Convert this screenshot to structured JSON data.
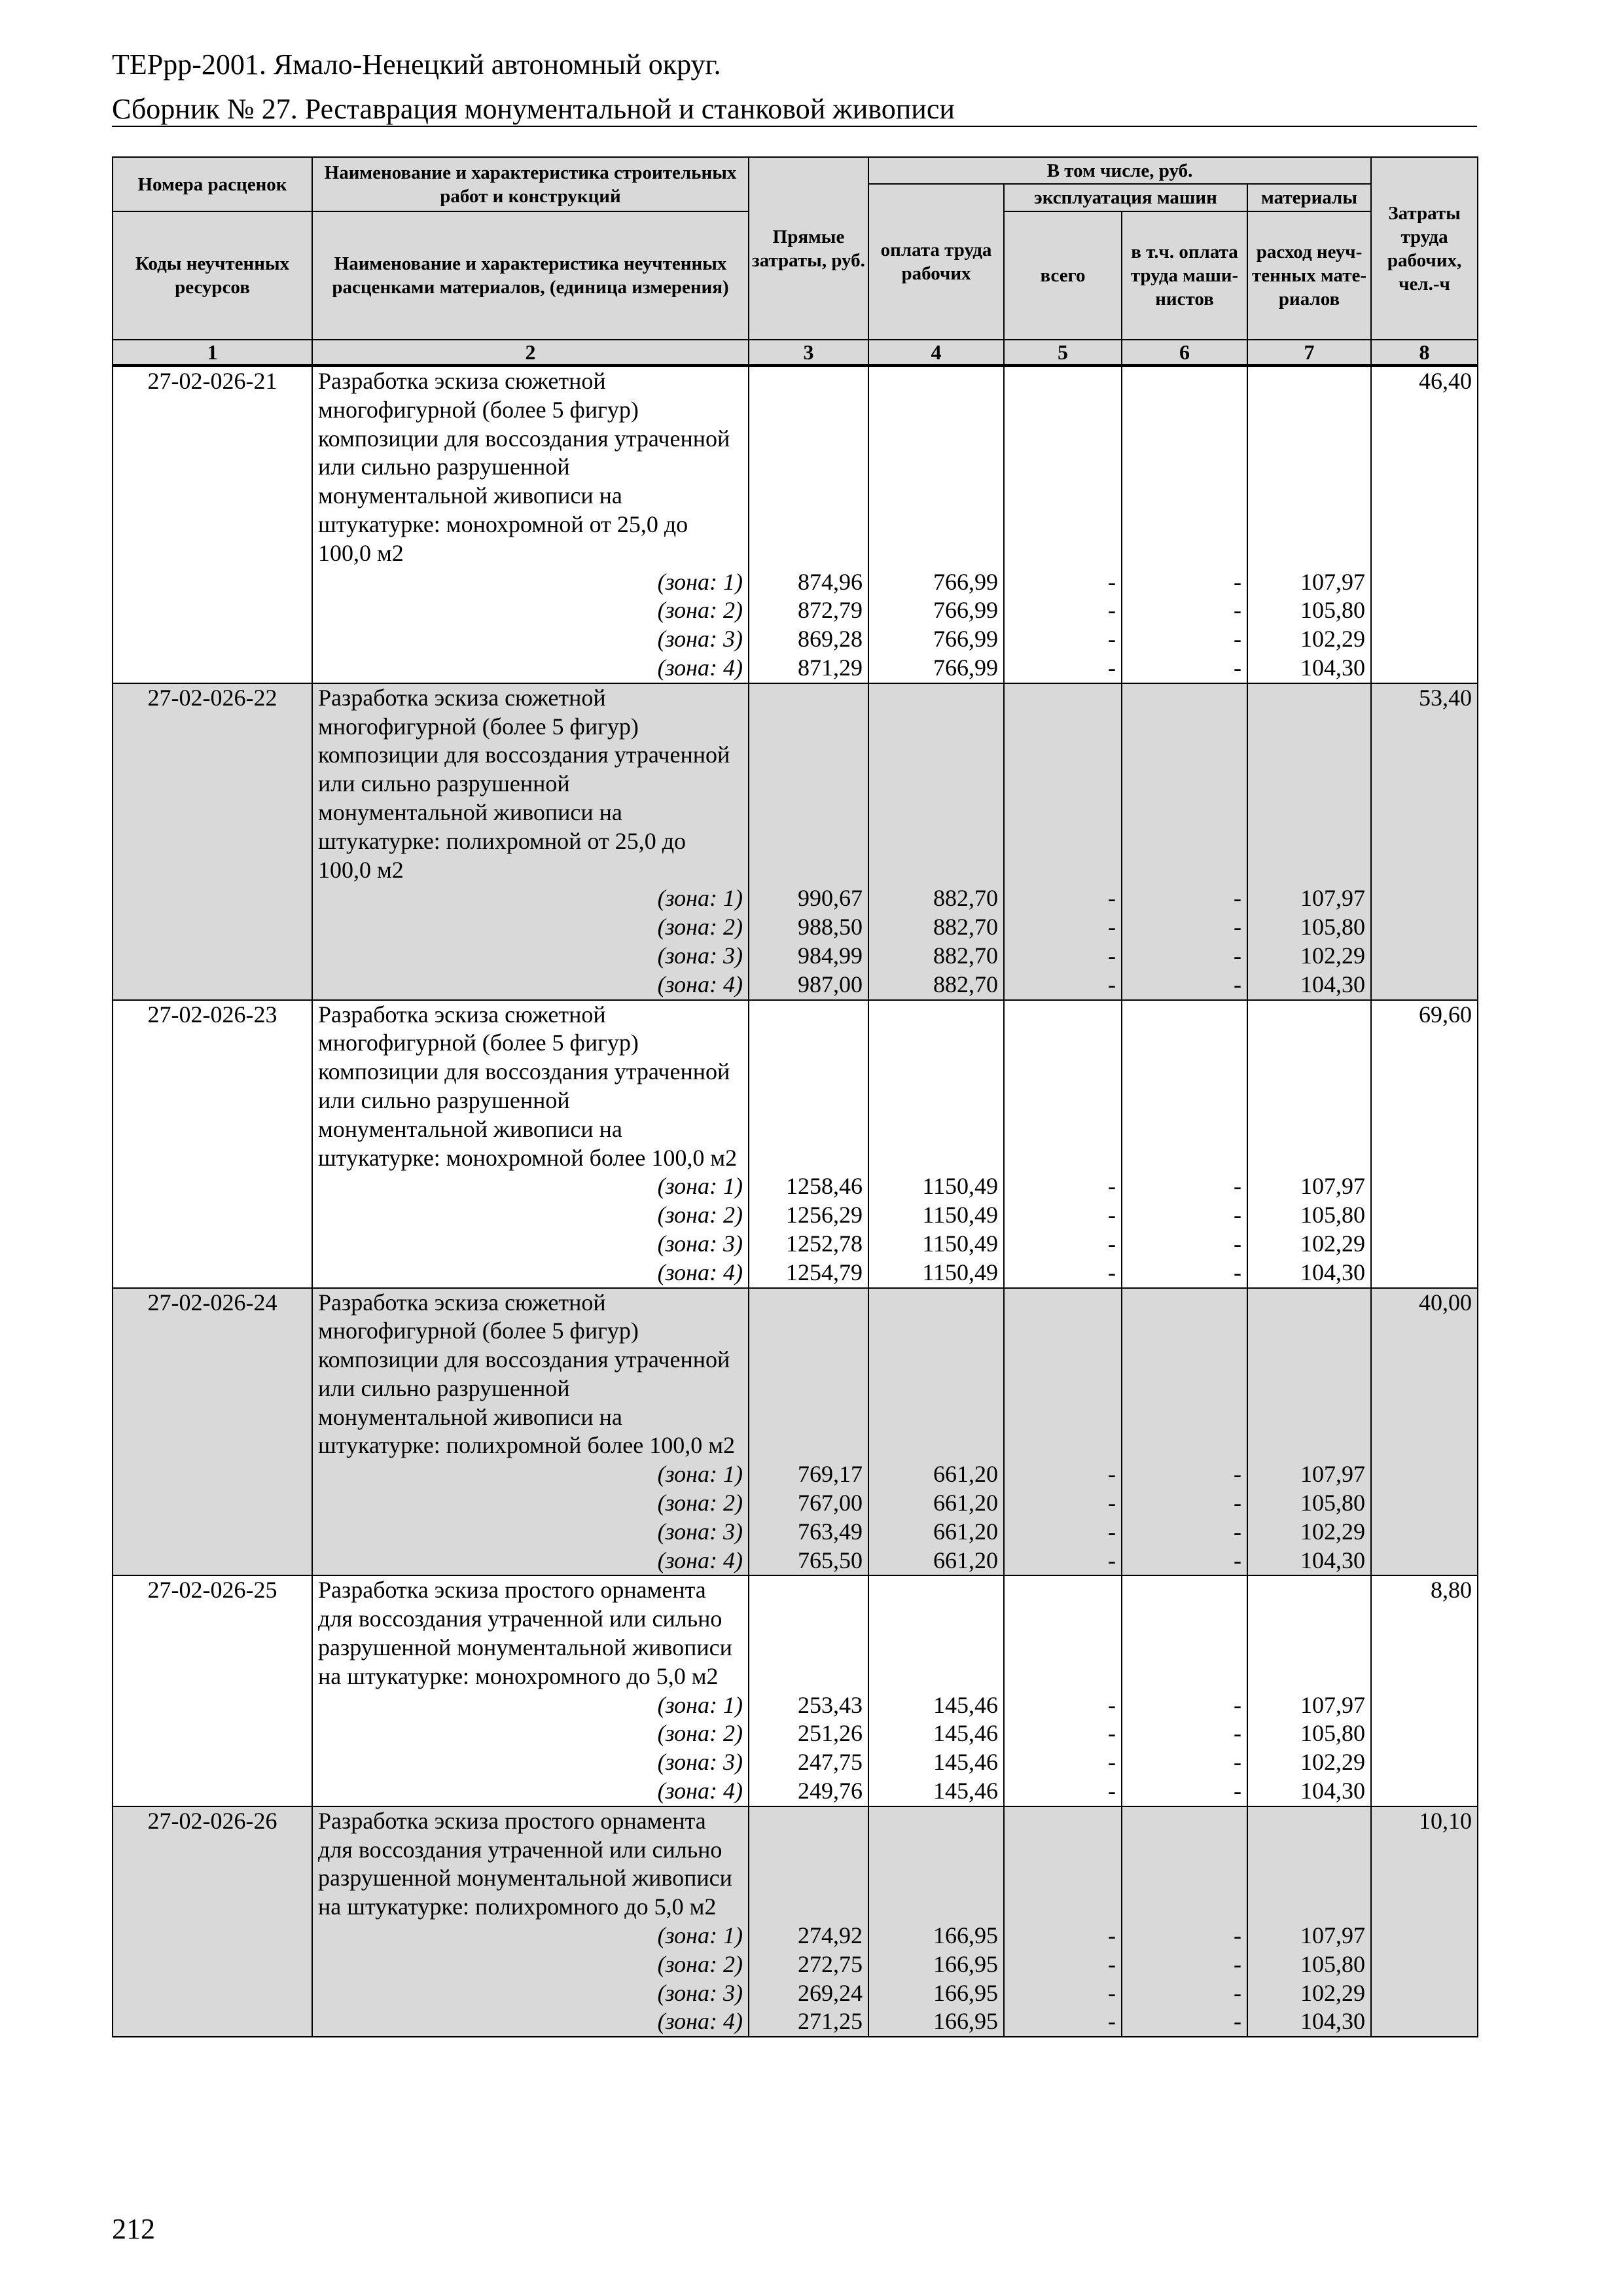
{
  "header": {
    "line1": "ТЕРрр-2001. Ямало-Ненецкий автономный округ.",
    "line2": "Сборник № 27. Реставрация монументальной и станковой живописи"
  },
  "table": {
    "head": {
      "c1a": "Номера расценок",
      "c2a": "Наименование и характеристика строительных работ и конструкций",
      "c1b": "Коды неучтенных ресурсов",
      "c2b": "Наименование и характеристика неучтенных расценками материалов, (единица измерения)",
      "c3": "Прямые затраты, руб.",
      "group": "В том числе, руб.",
      "c4": "оплата труда рабочих",
      "machines": "эксплуатация машин",
      "materials": "материалы",
      "c5": "всего",
      "c6": "в т.ч. оплата труда маши-нистов",
      "c7": "расход неуч-тенных мате-риалов",
      "c8": "Затраты труда рабочих, чел.-ч",
      "nums": [
        "1",
        "2",
        "3",
        "4",
        "5",
        "6",
        "7",
        "8"
      ]
    },
    "entries": [
      {
        "code": "27-02-026-21",
        "desc": "Разработка эскиза сюжетной многофигурной (более 5 фигур) композиции для воссоздания утраченной или сильно разрушенной монументальной живописи на штукатурке: монохромной от 25,0 до 100,0 м2",
        "labor": "46,40",
        "shaded": false,
        "zones": [
          [
            "(зона: 1)",
            "874,96",
            "766,99",
            "-",
            "-",
            "107,97"
          ],
          [
            "(зона: 2)",
            "872,79",
            "766,99",
            "-",
            "-",
            "105,80"
          ],
          [
            "(зона: 3)",
            "869,28",
            "766,99",
            "-",
            "-",
            "102,29"
          ],
          [
            "(зона: 4)",
            "871,29",
            "766,99",
            "-",
            "-",
            "104,30"
          ]
        ]
      },
      {
        "code": "27-02-026-22",
        "desc": "Разработка эскиза сюжетной многофигурной (более 5 фигур) композиции для воссоздания утраченной или сильно разрушенной монументальной живописи на штукатурке: полихромной от 25,0 до 100,0 м2",
        "labor": "53,40",
        "shaded": true,
        "zones": [
          [
            "(зона: 1)",
            "990,67",
            "882,70",
            "-",
            "-",
            "107,97"
          ],
          [
            "(зона: 2)",
            "988,50",
            "882,70",
            "-",
            "-",
            "105,80"
          ],
          [
            "(зона: 3)",
            "984,99",
            "882,70",
            "-",
            "-",
            "102,29"
          ],
          [
            "(зона: 4)",
            "987,00",
            "882,70",
            "-",
            "-",
            "104,30"
          ]
        ]
      },
      {
        "code": "27-02-026-23",
        "desc": "Разработка эскиза сюжетной многофигурной (более 5 фигур) композиции для воссоздания утраченной или сильно разрушенной монументальной живописи на штукатурке: монохромной более 100,0 м2",
        "labor": "69,60",
        "shaded": false,
        "zones": [
          [
            "(зона: 1)",
            "1258,46",
            "1150,49",
            "-",
            "-",
            "107,97"
          ],
          [
            "(зона: 2)",
            "1256,29",
            "1150,49",
            "-",
            "-",
            "105,80"
          ],
          [
            "(зона: 3)",
            "1252,78",
            "1150,49",
            "-",
            "-",
            "102,29"
          ],
          [
            "(зона: 4)",
            "1254,79",
            "1150,49",
            "-",
            "-",
            "104,30"
          ]
        ]
      },
      {
        "code": "27-02-026-24",
        "desc": "Разработка эскиза сюжетной многофигурной (более 5 фигур) композиции для воссоздания утраченной или сильно разрушенной монументальной живописи на штукатурке: полихромной более 100,0 м2",
        "labor": "40,00",
        "shaded": true,
        "zones": [
          [
            "(зона: 1)",
            "769,17",
            "661,20",
            "-",
            "-",
            "107,97"
          ],
          [
            "(зона: 2)",
            "767,00",
            "661,20",
            "-",
            "-",
            "105,80"
          ],
          [
            "(зона: 3)",
            "763,49",
            "661,20",
            "-",
            "-",
            "102,29"
          ],
          [
            "(зона: 4)",
            "765,50",
            "661,20",
            "-",
            "-",
            "104,30"
          ]
        ]
      },
      {
        "code": "27-02-026-25",
        "desc": "Разработка эскиза простого орнамента для воссоздания утраченной или сильно разрушенной монументальной живописи на штукатурке: монохромного до 5,0 м2",
        "labor": "8,80",
        "shaded": false,
        "zones": [
          [
            "(зона: 1)",
            "253,43",
            "145,46",
            "-",
            "-",
            "107,97"
          ],
          [
            "(зона: 2)",
            "251,26",
            "145,46",
            "-",
            "-",
            "105,80"
          ],
          [
            "(зона: 3)",
            "247,75",
            "145,46",
            "-",
            "-",
            "102,29"
          ],
          [
            "(зона: 4)",
            "249,76",
            "145,46",
            "-",
            "-",
            "104,30"
          ]
        ]
      },
      {
        "code": "27-02-026-26",
        "desc": "Разработка эскиза простого орнамента для воссоздания утраченной или сильно разрушенной монументальной живописи на штукатурке: полихромного до 5,0 м2",
        "labor": "10,10",
        "shaded": true,
        "zones": [
          [
            "(зона: 1)",
            "274,92",
            "166,95",
            "-",
            "-",
            "107,97"
          ],
          [
            "(зона: 2)",
            "272,75",
            "166,95",
            "-",
            "-",
            "105,80"
          ],
          [
            "(зона: 3)",
            "269,24",
            "166,95",
            "-",
            "-",
            "102,29"
          ],
          [
            "(зона: 4)",
            "271,25",
            "166,95",
            "-",
            "-",
            "104,30"
          ]
        ]
      }
    ]
  },
  "footer": {
    "page_number": "212"
  },
  "colors": {
    "shade": "#d9d9d9"
  }
}
